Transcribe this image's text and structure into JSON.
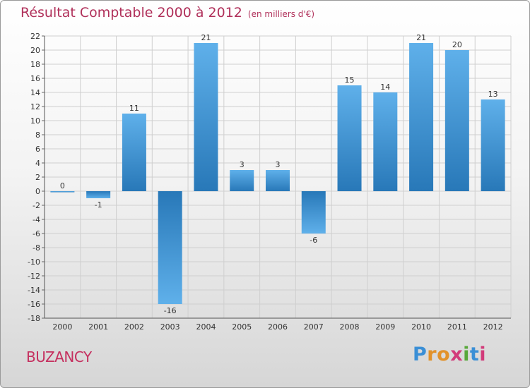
{
  "header": {
    "title": "Résultat Comptable 2000 à 2012",
    "subtitle": "(en milliers d'€)"
  },
  "footer": {
    "town": "BUZANCY",
    "logo_letters": [
      "P",
      "r",
      "o",
      "x",
      "i",
      "t",
      "i"
    ],
    "logo_colors": [
      "#3a8fd6",
      "#e2922a",
      "#e2922a",
      "#d23b7a",
      "#58a83a",
      "#3a8fd6",
      "#d23b7a"
    ]
  },
  "colors": {
    "bar_dark": "#2878b8",
    "bar_light": "#5fb0ea",
    "grid": "#cfcfcf",
    "title": "#b0305a"
  },
  "chart_data": {
    "type": "bar",
    "title": "Résultat Comptable 2000 à 2012",
    "subtitle": "(en milliers d'€)",
    "categories": [
      "2000",
      "2001",
      "2002",
      "2003",
      "2004",
      "2005",
      "2006",
      "2007",
      "2008",
      "2009",
      "2010",
      "2011",
      "2012"
    ],
    "values": [
      0,
      -1,
      11,
      -16,
      21,
      3,
      3,
      -6,
      15,
      14,
      21,
      20,
      13
    ],
    "data_labels": [
      "0",
      "-1",
      "11",
      "-16",
      "21",
      "3",
      "3",
      "-6",
      "15",
      "14",
      "21",
      "20",
      "13"
    ],
    "ylim": [
      -18,
      22
    ],
    "yticks": [
      22,
      20,
      18,
      16,
      14,
      12,
      10,
      8,
      6,
      4,
      2,
      0,
      -2,
      -4,
      -6,
      -8,
      -10,
      -12,
      -14,
      -16,
      -18
    ],
    "ytick_labels": [
      "22",
      "20",
      "18",
      "16",
      "14",
      "12",
      "10",
      "8",
      "6",
      "4",
      "2",
      "0",
      "-2",
      "-4",
      "-6",
      "-8",
      "-10",
      "-12",
      "-14",
      "-16",
      "-18"
    ],
    "xlabel": "",
    "ylabel": "",
    "grid": true
  }
}
